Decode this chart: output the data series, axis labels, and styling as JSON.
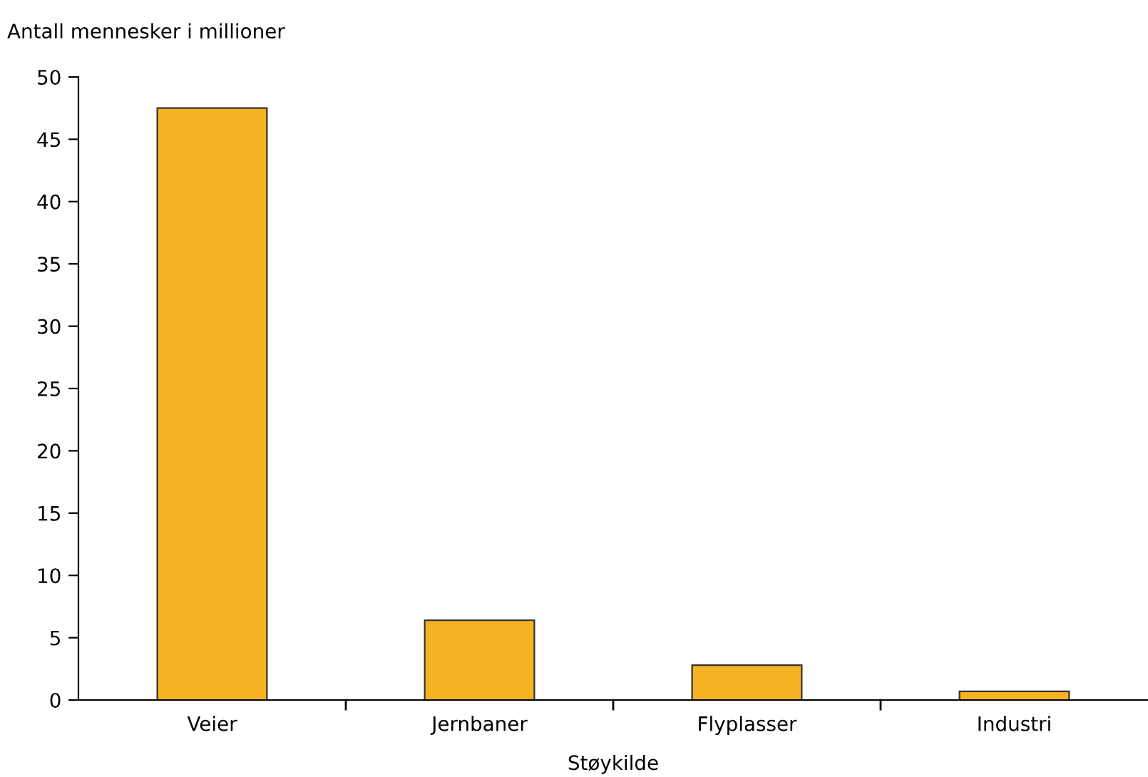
{
  "chart_data": {
    "type": "bar",
    "ylabel": "Antall mennesker i millioner",
    "xlabel": "Støykilde",
    "categories": [
      "Veier",
      "Jernbaner",
      "Flyplasser",
      "Industri"
    ],
    "values": [
      47.5,
      6.4,
      2.8,
      0.7
    ],
    "color": "#f5b324",
    "ylim": [
      0,
      50
    ],
    "yticks": [
      0,
      5,
      10,
      15,
      20,
      25,
      30,
      35,
      40,
      45,
      50
    ],
    "grid": false,
    "legend": false
  }
}
